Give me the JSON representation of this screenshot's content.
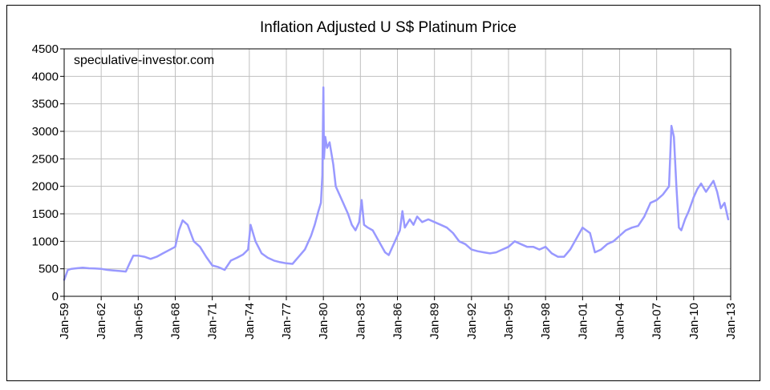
{
  "chart_data": {
    "type": "line",
    "title": "Inflation Adjusted U S$ Platinum Price",
    "annotation": "speculative-investor.com",
    "xlabel": "",
    "ylabel": "",
    "ylim": [
      0,
      4500
    ],
    "y_ticks": [
      0,
      500,
      1000,
      1500,
      2000,
      2500,
      3000,
      3500,
      4000,
      4500
    ],
    "xlim": [
      1959.0,
      2013.0
    ],
    "x_ticks": [
      {
        "label": "Jan-59",
        "year": 1959
      },
      {
        "label": "Jan-62",
        "year": 1962
      },
      {
        "label": "Jan-65",
        "year": 1965
      },
      {
        "label": "Jan-68",
        "year": 1968
      },
      {
        "label": "Jan-71",
        "year": 1971
      },
      {
        "label": "Jan-74",
        "year": 1974
      },
      {
        "label": "Jan-77",
        "year": 1977
      },
      {
        "label": "Jan-80",
        "year": 1980
      },
      {
        "label": "Jan-83",
        "year": 1983
      },
      {
        "label": "Jan-86",
        "year": 1986
      },
      {
        "label": "Jan-89",
        "year": 1989
      },
      {
        "label": "Jan-92",
        "year": 1992
      },
      {
        "label": "Jan-95",
        "year": 1995
      },
      {
        "label": "Jan-98",
        "year": 1998
      },
      {
        "label": "Jan-01",
        "year": 2001
      },
      {
        "label": "Jan-04",
        "year": 2004
      },
      {
        "label": "Jan-07",
        "year": 2007
      },
      {
        "label": "Jan-10",
        "year": 2010
      },
      {
        "label": "Jan-13",
        "year": 2013
      }
    ],
    "grid": true,
    "colors": {
      "line": "#9999ff",
      "grid": "#c0c0c0",
      "axis": "#000000"
    },
    "series": [
      {
        "x": [
          1959.0,
          1959.3,
          1959.6,
          1960.0,
          1960.5,
          1961.0,
          1961.5,
          1962.0,
          1962.5,
          1963.0,
          1963.5,
          1964.0,
          1964.3,
          1964.6,
          1965.0,
          1965.5,
          1966.0,
          1966.5,
          1967.0,
          1967.5,
          1968.0,
          1968.3,
          1968.6,
          1969.0,
          1969.5,
          1970.0,
          1970.5,
          1971.0,
          1971.5,
          1972.0,
          1972.5,
          1973.0,
          1973.5,
          1973.9,
          1974.1,
          1974.5,
          1975.0,
          1975.5,
          1976.0,
          1976.5,
          1977.0,
          1977.5,
          1978.0,
          1978.5,
          1979.0,
          1979.3,
          1979.6,
          1979.8,
          1979.92,
          1980.0,
          1980.05,
          1980.15,
          1980.3,
          1980.5,
          1980.8,
          1981.0,
          1981.3,
          1981.6,
          1982.0,
          1982.3,
          1982.6,
          1982.9,
          1983.1,
          1983.3,
          1983.6,
          1984.0,
          1984.5,
          1985.0,
          1985.3,
          1985.6,
          1986.0,
          1986.2,
          1986.4,
          1986.6,
          1987.0,
          1987.3,
          1987.6,
          1988.0,
          1988.5,
          1989.0,
          1989.5,
          1990.0,
          1990.5,
          1991.0,
          1991.5,
          1992.0,
          1992.5,
          1993.0,
          1993.5,
          1994.0,
          1994.5,
          1995.0,
          1995.5,
          1996.0,
          1996.5,
          1997.0,
          1997.5,
          1998.0,
          1998.5,
          1999.0,
          1999.5,
          2000.0,
          2000.5,
          2001.0,
          2001.3,
          2001.6,
          2002.0,
          2002.5,
          2003.0,
          2003.5,
          2004.0,
          2004.5,
          2005.0,
          2005.5,
          2006.0,
          2006.5,
          2007.0,
          2007.5,
          2008.0,
          2008.2,
          2008.4,
          2008.6,
          2008.8,
          2009.0,
          2009.3,
          2009.6,
          2010.0,
          2010.3,
          2010.6,
          2011.0,
          2011.3,
          2011.6,
          2011.9,
          2012.2,
          2012.5,
          2012.8
        ],
        "values": [
          300,
          480,
          500,
          510,
          520,
          510,
          505,
          500,
          480,
          470,
          460,
          450,
          600,
          740,
          740,
          720,
          680,
          720,
          780,
          840,
          900,
          1200,
          1380,
          1300,
          1000,
          900,
          720,
          560,
          530,
          480,
          650,
          700,
          760,
          850,
          1300,
          1000,
          780,
          700,
          650,
          620,
          600,
          590,
          720,
          850,
          1100,
          1300,
          1550,
          1700,
          2200,
          3800,
          2500,
          2900,
          2700,
          2800,
          2400,
          2000,
          1850,
          1700,
          1500,
          1300,
          1200,
          1350,
          1750,
          1300,
          1250,
          1200,
          1000,
          800,
          750,
          900,
          1100,
          1200,
          1550,
          1250,
          1400,
          1300,
          1450,
          1350,
          1400,
          1350,
          1300,
          1250,
          1150,
          1000,
          950,
          850,
          820,
          800,
          780,
          800,
          850,
          900,
          1000,
          950,
          900,
          900,
          850,
          900,
          780,
          720,
          720,
          850,
          1050,
          1250,
          1200,
          1150,
          800,
          850,
          950,
          1000,
          1100,
          1200,
          1250,
          1280,
          1450,
          1700,
          1750,
          1850,
          2000,
          3100,
          2900,
          2000,
          1250,
          1200,
          1400,
          1550,
          1800,
          1950,
          2050,
          1900,
          2000,
          2100,
          1900,
          1600,
          1700,
          1400
        ]
      }
    ]
  }
}
